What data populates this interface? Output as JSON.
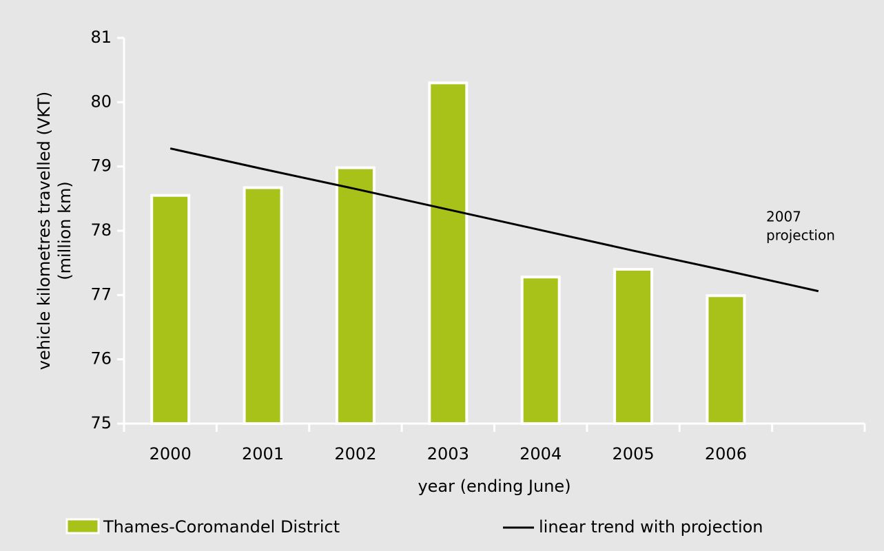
{
  "chart_data": {
    "type": "bar",
    "categories": [
      "2000",
      "2001",
      "2002",
      "2003",
      "2004",
      "2005",
      "2006",
      null
    ],
    "series": [
      {
        "name": "Thames-Coromandel District",
        "type": "bar",
        "color": "#a9c21a",
        "values": [
          78.55,
          78.67,
          78.98,
          80.3,
          77.28,
          77.4,
          76.99,
          null
        ]
      },
      {
        "name": "linear trend with projection",
        "type": "line",
        "color": "#000000",
        "values": [
          79.28,
          78.96,
          78.65,
          78.33,
          78.01,
          77.69,
          77.38,
          77.06
        ]
      }
    ],
    "ylim": [
      75,
      81
    ],
    "yticks": [
      75,
      76,
      77,
      78,
      79,
      80,
      81
    ],
    "xlabel": "year (ending June)",
    "ylabel": [
      "vehicle kilometres travelled (VKT)",
      "(million km)"
    ],
    "annotation": [
      "2007",
      "projection"
    ]
  }
}
